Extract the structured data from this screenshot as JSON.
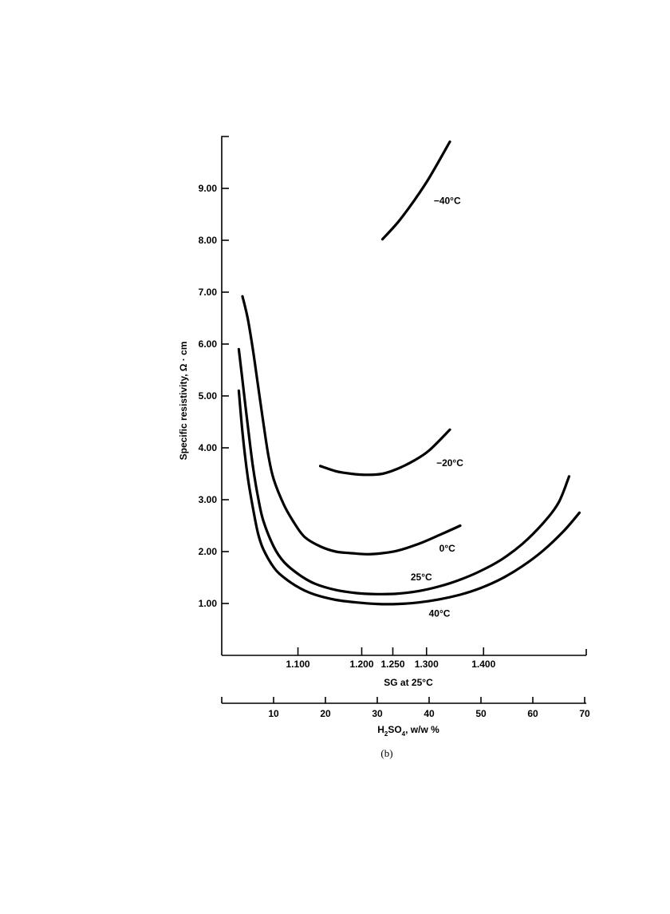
{
  "chart_data": {
    "type": "line",
    "title": "",
    "ylabel": "Specific resistivity, Ω · cm",
    "ylim": [
      0,
      10
    ],
    "y_ticks": [
      "1.00",
      "2.00",
      "3.00",
      "4.00",
      "5.00",
      "6.00",
      "7.00",
      "8.00",
      "9.00"
    ],
    "xlabel": "H2SO4, w/w %",
    "xlabel_parts": [
      "H",
      "2",
      "SO",
      "4",
      ", w/w %"
    ],
    "xlim": [
      0,
      70
    ],
    "x_ticks": [
      "10",
      "20",
      "30",
      "40",
      "50",
      "60",
      "70"
    ],
    "secondary_x_axis": {
      "label": "SG at 25°C",
      "ticks": [
        {
          "label": "1.100",
          "at_wt_pct": 14.7
        },
        {
          "label": "1.200",
          "at_wt_pct": 27.0
        },
        {
          "label": "1.250",
          "at_wt_pct": 33.0
        },
        {
          "label": "1.300",
          "at_wt_pct": 39.5
        },
        {
          "label": "1.400",
          "at_wt_pct": 50.5
        }
      ]
    },
    "series": [
      {
        "name": "−40°C",
        "points": [
          [
            31.0,
            8.02
          ],
          [
            34.0,
            8.35
          ],
          [
            37.0,
            8.75
          ],
          [
            40.0,
            9.2
          ],
          [
            44.0,
            9.9
          ]
        ]
      },
      {
        "name": "−20°C",
        "points": [
          [
            19.0,
            3.65
          ],
          [
            22.0,
            3.55
          ],
          [
            25.0,
            3.5
          ],
          [
            28.0,
            3.48
          ],
          [
            31.0,
            3.5
          ],
          [
            34.0,
            3.6
          ],
          [
            37.0,
            3.75
          ],
          [
            40.0,
            3.95
          ],
          [
            44.0,
            4.35
          ]
        ]
      },
      {
        "name": "0°C",
        "points": [
          [
            4.0,
            6.92
          ],
          [
            5.0,
            6.5
          ],
          [
            6.0,
            5.9
          ],
          [
            7.0,
            5.2
          ],
          [
            8.0,
            4.5
          ],
          [
            9.0,
            3.85
          ],
          [
            10.0,
            3.4
          ],
          [
            12.0,
            2.9
          ],
          [
            14.0,
            2.55
          ],
          [
            16.0,
            2.28
          ],
          [
            19.0,
            2.1
          ],
          [
            22.0,
            2.0
          ],
          [
            25.0,
            1.97
          ],
          [
            28.0,
            1.95
          ],
          [
            31.0,
            1.97
          ],
          [
            34.0,
            2.02
          ],
          [
            38.0,
            2.15
          ],
          [
            42.0,
            2.32
          ],
          [
            46.0,
            2.5
          ]
        ]
      },
      {
        "name": "25°C",
        "points": [
          [
            3.3,
            5.9
          ],
          [
            4.0,
            5.3
          ],
          [
            5.0,
            4.45
          ],
          [
            6.0,
            3.65
          ],
          [
            7.0,
            3.05
          ],
          [
            8.0,
            2.6
          ],
          [
            10.0,
            2.1
          ],
          [
            12.0,
            1.8
          ],
          [
            15.0,
            1.55
          ],
          [
            18.0,
            1.38
          ],
          [
            22.0,
            1.26
          ],
          [
            26.0,
            1.2
          ],
          [
            30.0,
            1.18
          ],
          [
            34.0,
            1.19
          ],
          [
            38.0,
            1.24
          ],
          [
            42.0,
            1.33
          ],
          [
            46.0,
            1.46
          ],
          [
            50.0,
            1.63
          ],
          [
            54.0,
            1.85
          ],
          [
            58.0,
            2.15
          ],
          [
            62.0,
            2.55
          ],
          [
            65.0,
            2.95
          ],
          [
            67.0,
            3.45
          ]
        ]
      },
      {
        "name": "40°C",
        "points": [
          [
            3.3,
            5.1
          ],
          [
            4.0,
            4.3
          ],
          [
            5.0,
            3.45
          ],
          [
            6.0,
            2.85
          ],
          [
            7.0,
            2.35
          ],
          [
            8.0,
            2.05
          ],
          [
            10.0,
            1.7
          ],
          [
            12.0,
            1.5
          ],
          [
            15.0,
            1.3
          ],
          [
            18.0,
            1.17
          ],
          [
            22.0,
            1.07
          ],
          [
            26.0,
            1.02
          ],
          [
            30.0,
            0.99
          ],
          [
            34.0,
            0.99
          ],
          [
            38.0,
            1.02
          ],
          [
            42.0,
            1.08
          ],
          [
            46.0,
            1.17
          ],
          [
            50.0,
            1.3
          ],
          [
            54.0,
            1.48
          ],
          [
            58.0,
            1.72
          ],
          [
            62.0,
            2.02
          ],
          [
            66.0,
            2.4
          ],
          [
            69.0,
            2.75
          ]
        ]
      }
    ],
    "series_labels": [
      {
        "text": "−40°C",
        "at": [
          43.5,
          8.7
        ]
      },
      {
        "text": "−20°C",
        "at": [
          44.0,
          3.65
        ]
      },
      {
        "text": "0°C",
        "at": [
          43.5,
          2.0
        ]
      },
      {
        "text": "25°C",
        "at": [
          38.5,
          1.45
        ]
      },
      {
        "text": "40°C",
        "at": [
          42.0,
          0.75
        ]
      }
    ],
    "grid": false,
    "legend": "none"
  },
  "caption": "(b)"
}
